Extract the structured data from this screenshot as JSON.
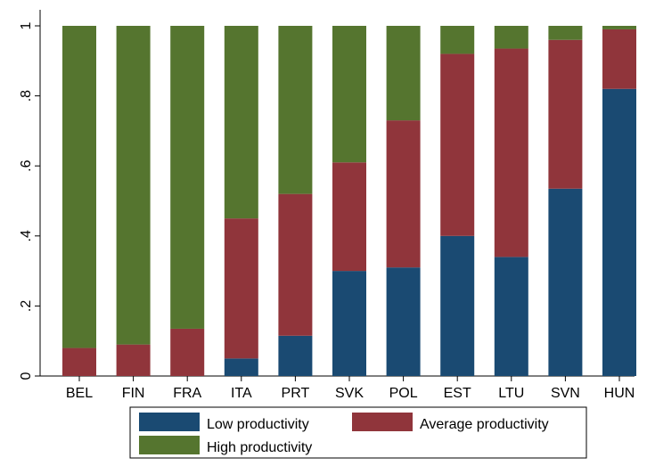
{
  "chart_data": {
    "type": "bar",
    "stacked": true,
    "categories": [
      "BEL",
      "FIN",
      "FRA",
      "ITA",
      "PRT",
      "SVK",
      "POL",
      "EST",
      "LTU",
      "SVN",
      "HUN"
    ],
    "series": [
      {
        "name": "Low productivity",
        "color": "#1a4a72",
        "values": [
          0,
          0,
          0,
          0.05,
          0.115,
          0.3,
          0.31,
          0.4,
          0.34,
          0.535,
          0.82
        ]
      },
      {
        "name": "Average productivity",
        "color": "#90353b",
        "values": [
          0.08,
          0.09,
          0.135,
          0.4,
          0.405,
          0.31,
          0.42,
          0.52,
          0.595,
          0.425,
          0.17
        ]
      },
      {
        "name": "High productivity",
        "color": "#55752f",
        "values": [
          0.92,
          0.91,
          0.865,
          0.55,
          0.48,
          0.39,
          0.27,
          0.08,
          0.065,
          0.04,
          0.01
        ]
      }
    ],
    "y_ticks": [
      {
        "value": 0,
        "label": "0"
      },
      {
        "value": 0.2,
        "label": ".2"
      },
      {
        "value": 0.4,
        "label": ".4"
      },
      {
        "value": 0.6,
        "label": ".6"
      },
      {
        "value": 0.8,
        "label": ".8"
      },
      {
        "value": 1,
        "label": "1"
      }
    ],
    "ylim": [
      0,
      1
    ],
    "title": "",
    "xlabel": "",
    "ylabel": "",
    "grid": false,
    "legend_position": "bottom",
    "legend_order": [
      "Low productivity",
      "Average productivity",
      "High productivity"
    ]
  }
}
